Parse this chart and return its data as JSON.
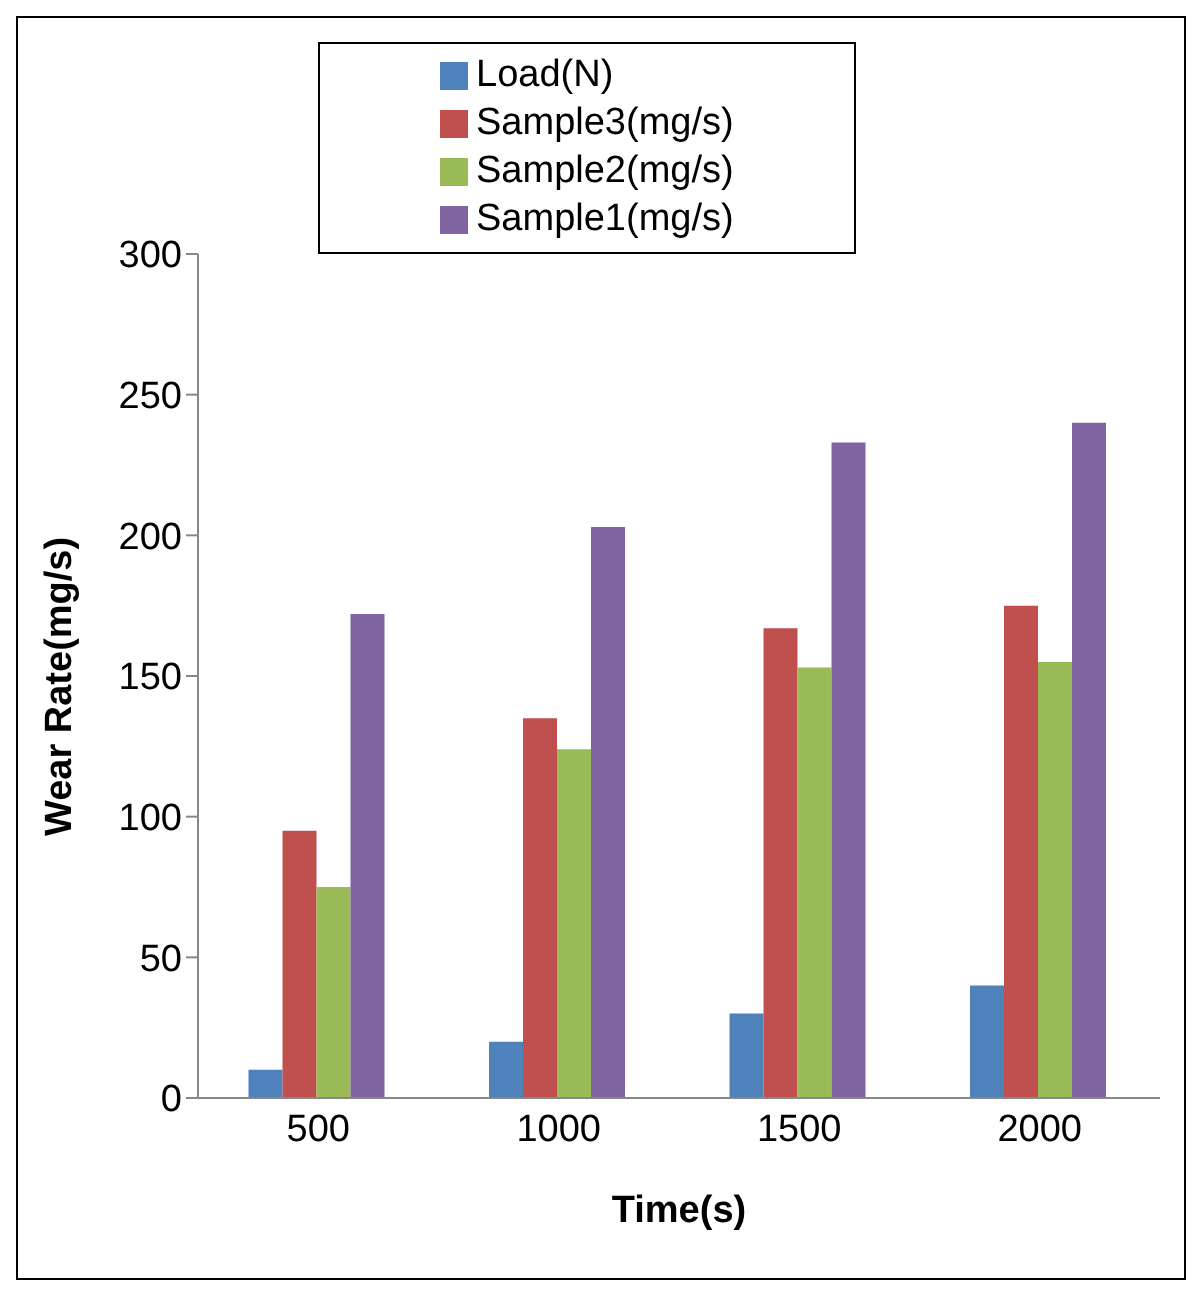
{
  "chart_data": {
    "type": "bar",
    "xlabel": "Time(s)",
    "ylabel": "Wear Rate(mg/s)",
    "categories": [
      "500",
      "1000",
      "1500",
      "2000"
    ],
    "series": [
      {
        "name": "Load(N)",
        "color": "#4f81bd",
        "values": [
          10,
          20,
          30,
          40
        ]
      },
      {
        "name": "Sample3(mg/s)",
        "color": "#c0504d",
        "values": [
          95,
          135,
          167,
          175
        ]
      },
      {
        "name": "Sample2(mg/s)",
        "color": "#9bbb59",
        "values": [
          75,
          124,
          153,
          155
        ]
      },
      {
        "name": "Sample1(mg/s)",
        "color": "#8064a2",
        "values": [
          172,
          203,
          233,
          240
        ]
      }
    ],
    "ylim": [
      0,
      300
    ],
    "yticks": [
      0,
      50,
      100,
      150,
      200,
      250,
      300
    ],
    "grid": false,
    "legend": "top"
  }
}
